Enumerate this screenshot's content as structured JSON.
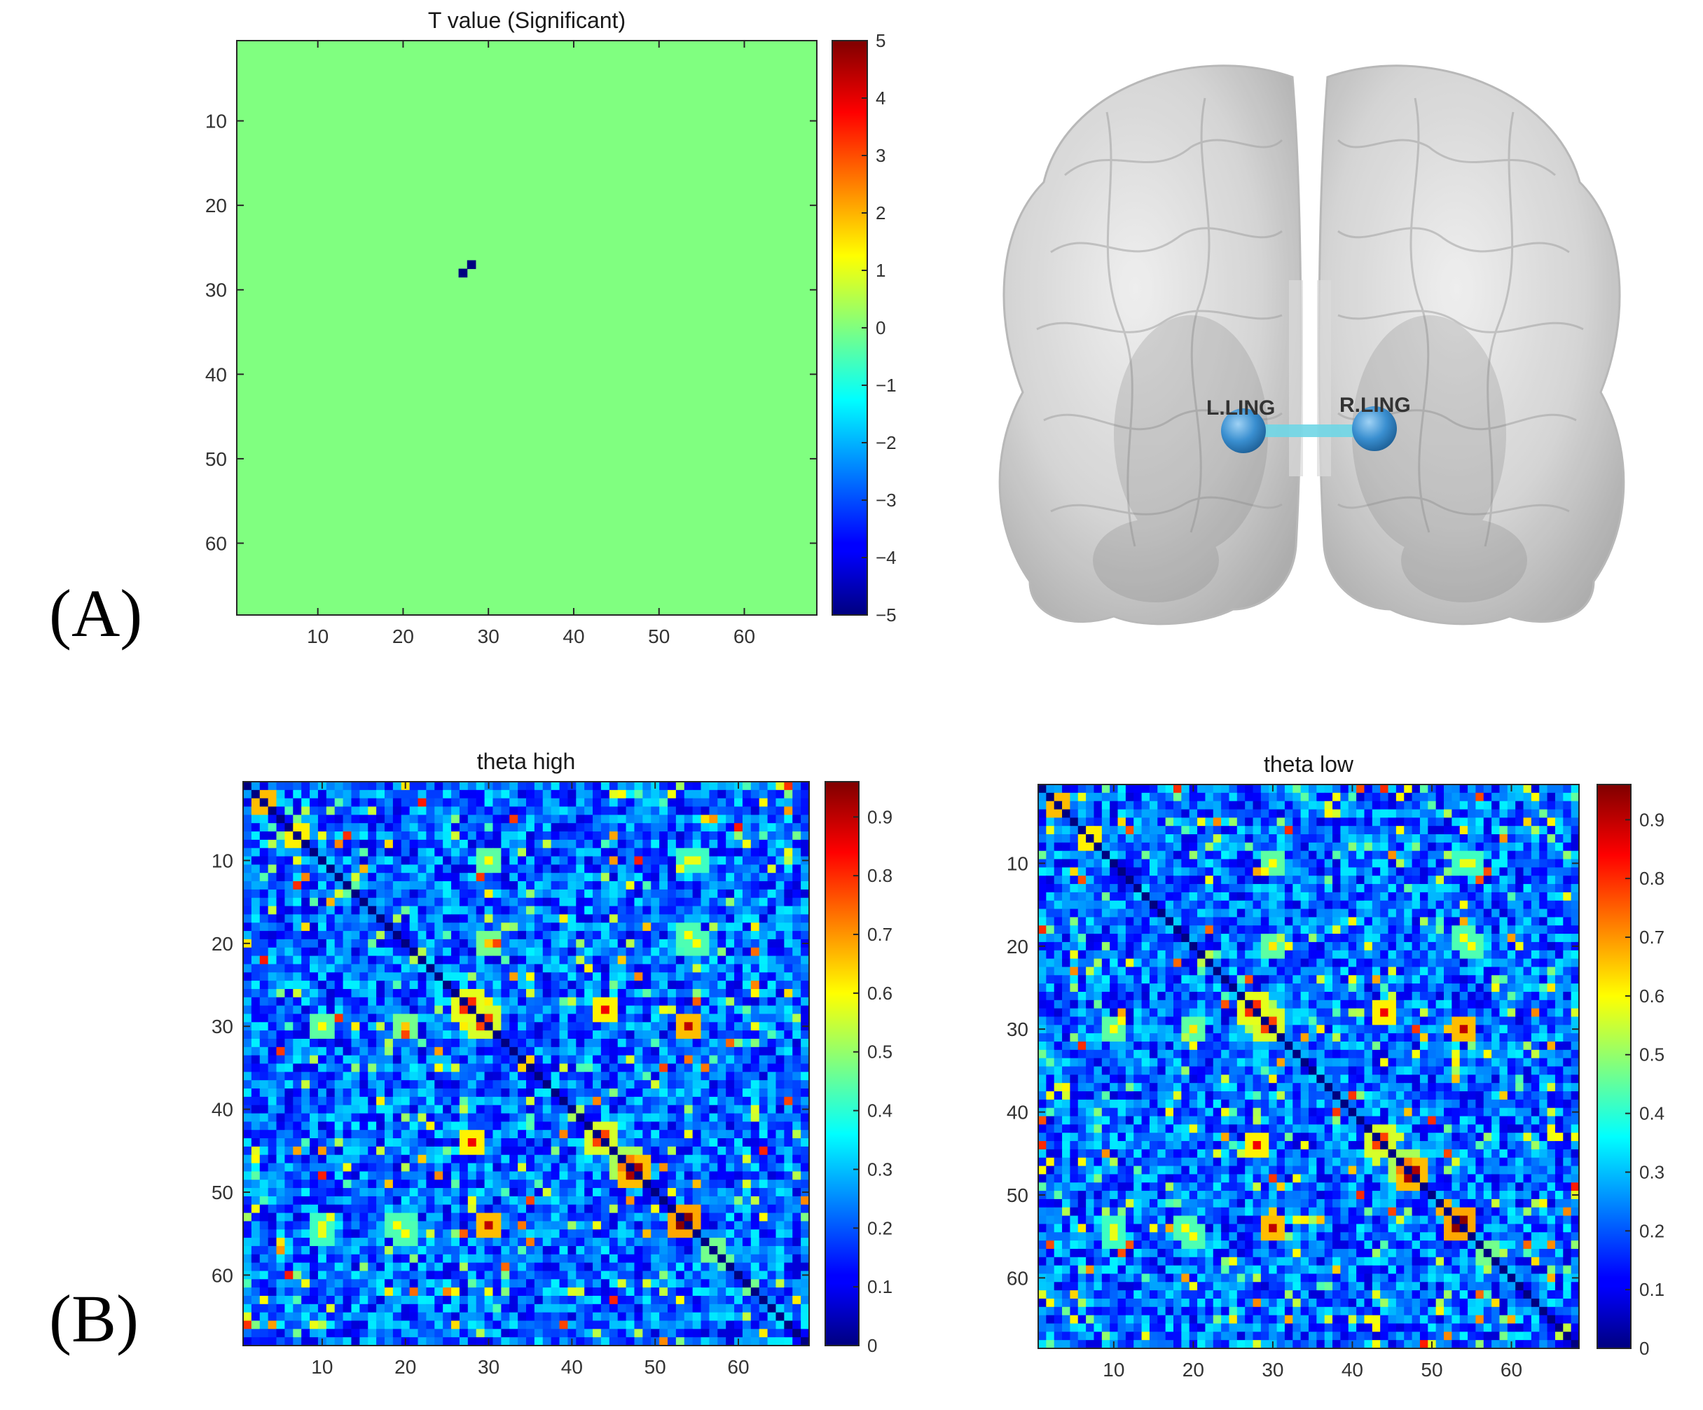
{
  "panels": {
    "a_label": "(A)",
    "b_label": "(B)"
  },
  "brain": {
    "left_node": "L.LING",
    "right_node": "R.LING",
    "edge_color": "#6fd6e6",
    "node_color": "#3a8fd0"
  },
  "chart_data": [
    {
      "id": "t_value",
      "type": "heatmap",
      "title": "T value (Significant)",
      "size": 68,
      "xticks": [
        10,
        20,
        30,
        40,
        50,
        60
      ],
      "yticks": [
        10,
        20,
        30,
        40,
        50,
        60
      ],
      "background_value": 0,
      "cells": [
        {
          "row": 27,
          "col": 28,
          "value": -5
        },
        {
          "row": 28,
          "col": 27,
          "value": -5
        }
      ],
      "colorbar": {
        "colormap": "jet",
        "clim": [
          -5,
          5
        ],
        "ticks": [
          5,
          4,
          3,
          2,
          1,
          0,
          -1,
          -2,
          -3,
          -4,
          -5
        ]
      },
      "grid": false
    },
    {
      "id": "theta_high",
      "type": "heatmap",
      "title": "theta high",
      "size": 68,
      "xticks": [
        10,
        20,
        30,
        40,
        50,
        60
      ],
      "yticks": [
        10,
        20,
        30,
        40,
        50,
        60
      ],
      "diagonal_value": 0,
      "background_range": [
        0.08,
        0.35
      ],
      "hotspots": [
        {
          "row": 3,
          "col": 3,
          "value": 0.92
        },
        {
          "row": 7,
          "col": 7,
          "value": 0.85
        },
        {
          "row": 10,
          "col": 30,
          "value": 0.62
        },
        {
          "row": 10,
          "col": 55,
          "value": 0.58
        },
        {
          "row": 20,
          "col": 30,
          "value": 0.65
        },
        {
          "row": 20,
          "col": 55,
          "value": 0.6
        },
        {
          "row": 27,
          "col": 28,
          "value": 0.8
        },
        {
          "row": 28,
          "col": 27,
          "value": 0.8
        },
        {
          "row": 28,
          "col": 44,
          "value": 0.8
        },
        {
          "row": 30,
          "col": 10,
          "value": 0.6
        },
        {
          "row": 30,
          "col": 29,
          "value": 0.78
        },
        {
          "row": 30,
          "col": 54,
          "value": 0.92
        },
        {
          "row": 44,
          "col": 28,
          "value": 0.85
        },
        {
          "row": 44,
          "col": 43,
          "value": 0.78
        },
        {
          "row": 47,
          "col": 46,
          "value": 0.72
        },
        {
          "row": 48,
          "col": 47,
          "value": 0.92
        },
        {
          "row": 54,
          "col": 10,
          "value": 0.58
        },
        {
          "row": 54,
          "col": 19,
          "value": 0.6
        },
        {
          "row": 54,
          "col": 30,
          "value": 0.9
        },
        {
          "row": 54,
          "col": 53,
          "value": 0.95
        },
        {
          "row": 57,
          "col": 57,
          "value": 0.65
        }
      ],
      "colorbar": {
        "colormap": "jet",
        "clim": [
          0,
          0.96
        ],
        "ticks": [
          0.9,
          0.8,
          0.7,
          0.6,
          0.5,
          0.4,
          0.3,
          0.2,
          0.1,
          0
        ]
      },
      "grid": false
    },
    {
      "id": "theta_low",
      "type": "heatmap",
      "title": "theta low",
      "size": 68,
      "xticks": [
        10,
        20,
        30,
        40,
        50,
        60
      ],
      "yticks": [
        10,
        20,
        30,
        40,
        50,
        60
      ],
      "diagonal_value": 0,
      "background_range": [
        0.08,
        0.35
      ],
      "hotspots": [
        {
          "row": 3,
          "col": 3,
          "value": 0.92
        },
        {
          "row": 7,
          "col": 7,
          "value": 0.85
        },
        {
          "row": 10,
          "col": 30,
          "value": 0.62
        },
        {
          "row": 10,
          "col": 55,
          "value": 0.58
        },
        {
          "row": 20,
          "col": 30,
          "value": 0.62
        },
        {
          "row": 20,
          "col": 55,
          "value": 0.6
        },
        {
          "row": 27,
          "col": 28,
          "value": 0.8
        },
        {
          "row": 28,
          "col": 27,
          "value": 0.8
        },
        {
          "row": 28,
          "col": 44,
          "value": 0.8
        },
        {
          "row": 30,
          "col": 10,
          "value": 0.6
        },
        {
          "row": 30,
          "col": 29,
          "value": 0.78
        },
        {
          "row": 30,
          "col": 54,
          "value": 0.92
        },
        {
          "row": 44,
          "col": 28,
          "value": 0.85
        },
        {
          "row": 44,
          "col": 43,
          "value": 0.78
        },
        {
          "row": 47,
          "col": 46,
          "value": 0.72
        },
        {
          "row": 48,
          "col": 47,
          "value": 0.92
        },
        {
          "row": 54,
          "col": 10,
          "value": 0.58
        },
        {
          "row": 54,
          "col": 19,
          "value": 0.6
        },
        {
          "row": 54,
          "col": 30,
          "value": 0.9
        },
        {
          "row": 54,
          "col": 53,
          "value": 0.95
        },
        {
          "row": 57,
          "col": 57,
          "value": 0.65
        }
      ],
      "colorbar": {
        "colormap": "jet",
        "clim": [
          0,
          0.96
        ],
        "ticks": [
          0.9,
          0.8,
          0.7,
          0.6,
          0.5,
          0.4,
          0.3,
          0.2,
          0.1,
          0
        ]
      },
      "grid": false
    }
  ]
}
